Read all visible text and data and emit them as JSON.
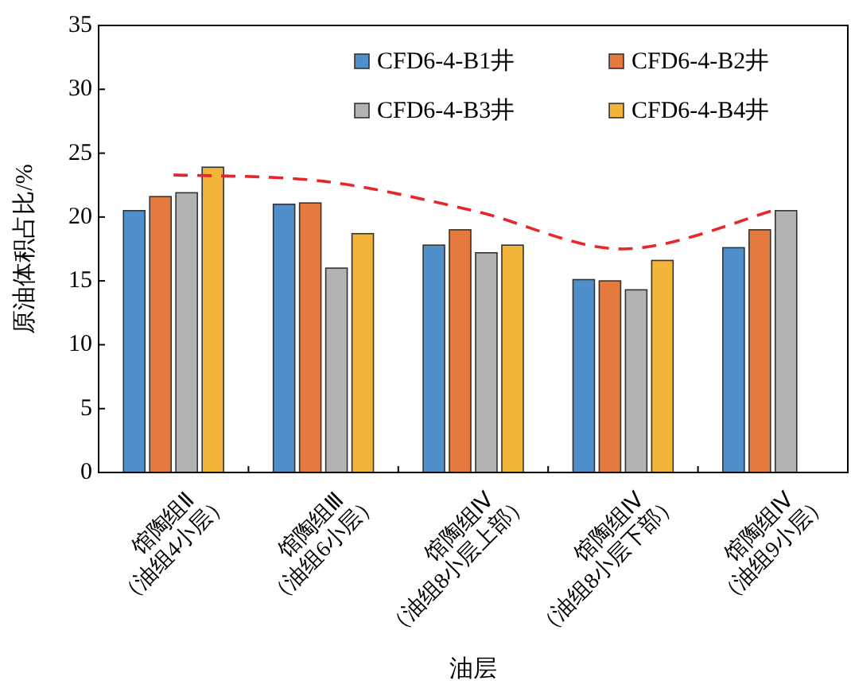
{
  "chart_data": {
    "type": "bar",
    "categories": [
      "馆陶组Ⅱ\n（油组4小层）",
      "馆陶组Ⅲ\n（油组6小层）",
      "馆陶组Ⅳ\n（油组8小层上部）",
      "馆陶组Ⅳ\n（油组8小层下部）",
      "馆陶组Ⅳ\n（油组9小层）"
    ],
    "series": [
      {
        "name": "CFD6-4-B1井",
        "color": "#4f8fcb",
        "values": [
          20.5,
          21.0,
          17.8,
          15.1,
          17.6
        ]
      },
      {
        "name": "CFD6-4-B2井",
        "color": "#e57a3f",
        "values": [
          21.6,
          21.1,
          19.0,
          15.0,
          19.0
        ]
      },
      {
        "name": "CFD6-4-B3井",
        "color": "#b3b3b5",
        "values": [
          21.9,
          16.0,
          17.2,
          14.3,
          20.5
        ]
      },
      {
        "name": "CFD6-4-B4井",
        "color": "#f3b43a",
        "values": [
          23.9,
          18.7,
          17.8,
          16.6,
          null
        ]
      },
      {
        "type": "line",
        "color": "#e8262a",
        "line_style": "dashed",
        "x": [
          "馆陶组Ⅱ\n（油组4小层）",
          "馆陶组Ⅲ\n（油组6小层）",
          "馆陶组Ⅳ\n（油组8小层上部）",
          "馆陶组Ⅳ\n（油组8小层下部）",
          "馆陶组Ⅳ\n（油组9小层）"
        ],
        "values": [
          23.3,
          22.8,
          20.5,
          17.5,
          20.5
        ]
      }
    ],
    "xlabel": "油层",
    "ylabel": "原油体积占比/%",
    "ylim": [
      0,
      35
    ],
    "yticks": [
      0,
      5,
      10,
      15,
      20,
      25,
      30,
      35
    ],
    "legend": "top right",
    "grid": false
  }
}
